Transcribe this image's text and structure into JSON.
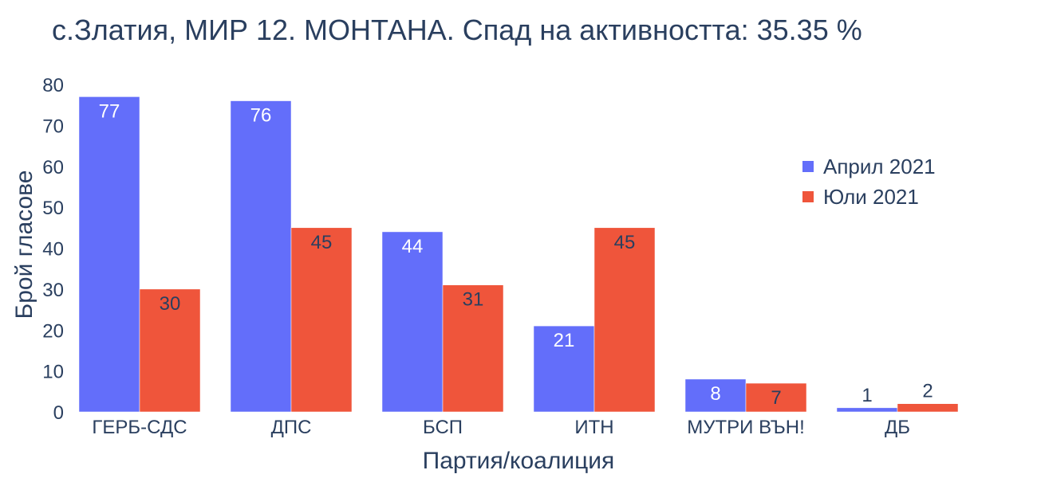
{
  "chart_data": {
    "type": "bar",
    "title": "с.Златия, МИР 12. МОНТАНА. Спад на активността: 35.35 %",
    "xlabel": "Партия/коалиция",
    "ylabel": "Брой гласове",
    "categories": [
      "ГЕРБ-СДС",
      "ДПС",
      "БСП",
      "ИТН",
      "МУТРИ ВЪН!",
      "ДБ"
    ],
    "series": [
      {
        "name": "Април 2021",
        "color": "#636efa",
        "values": [
          77,
          76,
          44,
          21,
          8,
          1
        ]
      },
      {
        "name": "Юли 2021",
        "color": "#ef553b",
        "values": [
          30,
          45,
          31,
          45,
          7,
          2
        ]
      }
    ],
    "ylim": [
      0,
      80
    ],
    "yticks": [
      0,
      10,
      20,
      30,
      40,
      50,
      60,
      70,
      80
    ],
    "grid": false,
    "legend_position": "right"
  }
}
